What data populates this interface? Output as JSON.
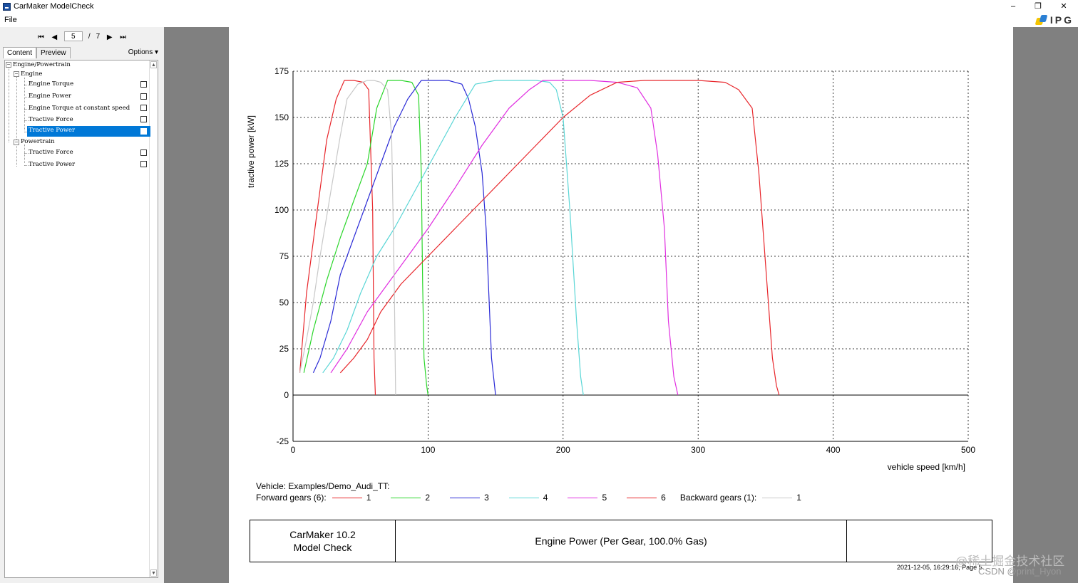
{
  "window": {
    "title": "CarMaker ModelCheck",
    "minimize": "–",
    "restore": "❐",
    "close": "✕"
  },
  "menu": {
    "file": "File"
  },
  "brand": {
    "text": "IPG"
  },
  "nav": {
    "page": "5",
    "separator": "/",
    "total": "7"
  },
  "tabs": {
    "content": "Content",
    "preview": "Preview",
    "options": "Options ▾"
  },
  "tree": {
    "root": "Engine/Powertrain",
    "engine": "Engine",
    "engine_items": [
      "Engine Torque",
      "Engine Power",
      "Engine Torque at constant speed",
      "Tractive Force",
      "Tractive Power"
    ],
    "powertrain": "Powertrain",
    "powertrain_items": [
      "Tractive Force",
      "Tractive Power"
    ]
  },
  "chart_data": {
    "type": "line",
    "title": "Engine Power (Per Gear, 100.0% Gas)",
    "xlabel": "vehicle speed [km/h]",
    "ylabel": "tractive power [kW]",
    "xlim": [
      0,
      500
    ],
    "ylim": [
      -25,
      175
    ],
    "xticks": [
      "0",
      "100",
      "200",
      "300",
      "400",
      "500"
    ],
    "yticks": [
      "-25",
      "0",
      "25",
      "50",
      "75",
      "100",
      "125",
      "150",
      "175"
    ],
    "grid": true,
    "series": [
      {
        "name": "Forward 1",
        "color": "#e8262b",
        "x": [
          5,
          10,
          18,
          25,
          32,
          38,
          45,
          52,
          56,
          59,
          60,
          61
        ],
        "y": [
          12,
          55,
          100,
          138,
          160,
          170,
          170,
          169,
          165,
          100,
          20,
          0
        ]
      },
      {
        "name": "Forward 2",
        "color": "#2bd62b",
        "x": [
          8,
          15,
          25,
          35,
          45,
          55,
          62,
          70,
          80,
          88,
          93,
          95,
          96,
          97,
          99,
          100
        ],
        "y": [
          12,
          35,
          62,
          85,
          105,
          125,
          155,
          170,
          170,
          169,
          162,
          120,
          60,
          20,
          5,
          0
        ]
      },
      {
        "name": "Forward 3",
        "color": "#2a2ad6",
        "x": [
          15,
          20,
          28,
          35,
          45,
          55,
          65,
          75,
          85,
          95,
          105,
          115,
          125,
          130,
          135,
          140,
          143,
          145,
          147,
          150
        ],
        "y": [
          12,
          20,
          40,
          65,
          85,
          105,
          125,
          145,
          160,
          170,
          170,
          170,
          168,
          160,
          145,
          120,
          90,
          55,
          20,
          0
        ]
      },
      {
        "name": "Forward 4",
        "color": "#5ad6d6",
        "x": [
          22,
          30,
          40,
          50,
          62,
          75,
          90,
          105,
          120,
          135,
          150,
          165,
          180,
          190,
          195,
          200,
          205,
          210,
          213,
          215
        ],
        "y": [
          12,
          20,
          35,
          55,
          75,
          90,
          110,
          130,
          150,
          168,
          170,
          170,
          170,
          169,
          165,
          150,
          100,
          40,
          10,
          0
        ]
      },
      {
        "name": "Forward 5",
        "color": "#e02ee0",
        "x": [
          28,
          40,
          55,
          70,
          85,
          100,
          120,
          140,
          160,
          175,
          185,
          200,
          220,
          240,
          255,
          265,
          270,
          275,
          278,
          282,
          285
        ],
        "y": [
          12,
          25,
          45,
          60,
          75,
          90,
          112,
          135,
          155,
          165,
          170,
          170,
          170,
          169,
          166,
          155,
          130,
          90,
          40,
          10,
          0
        ]
      },
      {
        "name": "Forward 6",
        "color": "#e8262b",
        "x": [
          35,
          45,
          55,
          65,
          80,
          100,
          120,
          140,
          160,
          180,
          200,
          220,
          240,
          260,
          280,
          300,
          320,
          330,
          340,
          345,
          350,
          355,
          358,
          360
        ],
        "y": [
          12,
          20,
          30,
          45,
          60,
          75,
          90,
          105,
          120,
          135,
          150,
          162,
          169,
          170,
          170,
          170,
          169,
          165,
          155,
          120,
          70,
          20,
          5,
          0
        ]
      },
      {
        "name": "Backward 1",
        "color": "#c8c8c8",
        "x": [
          5,
          10,
          15,
          20,
          28,
          35,
          40,
          48,
          55,
          60,
          65,
          70,
          73,
          75,
          76
        ],
        "y": [
          12,
          30,
          50,
          75,
          110,
          140,
          160,
          168,
          170,
          170,
          169,
          165,
          140,
          60,
          0
        ]
      }
    ]
  },
  "legend": {
    "vehicle": "Vehicle: Examples/Demo_Audi_TT:",
    "forward_label": "Forward gears (6):",
    "backward_label": "Backward gears (1):",
    "forward": [
      {
        "label": "1",
        "color": "#e8262b"
      },
      {
        "label": "2",
        "color": "#2bd62b"
      },
      {
        "label": "3",
        "color": "#2a2ad6"
      },
      {
        "label": "4",
        "color": "#5ad6d6"
      },
      {
        "label": "5",
        "color": "#e02ee0"
      },
      {
        "label": "6",
        "color": "#e8262b"
      }
    ],
    "backward": [
      {
        "label": "1",
        "color": "#c8c8c8"
      }
    ]
  },
  "footer": {
    "app_line1": "CarMaker 10.2",
    "app_line2": "Model Check",
    "title": "Engine Power (Per Gear, 100.0% Gas)",
    "timestamp": "2021-12-05, 16:29:16, Page 5"
  },
  "watermark": {
    "line1": "@稀土掘金技术社区",
    "line2": "CSDN @print_Hyon"
  }
}
